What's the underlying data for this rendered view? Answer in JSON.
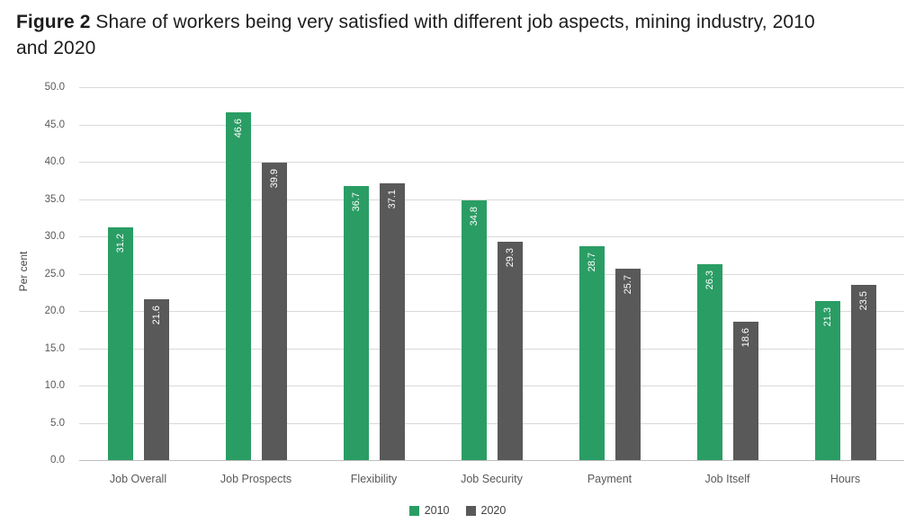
{
  "title": {
    "prefix": "Figure 2",
    "rest": " Share of workers being very satisfied with different job aspects, mining industry, 2010 and 2020"
  },
  "chart_data": {
    "type": "bar",
    "title": "Figure 2 Share of workers being very satisfied with different job aspects, mining industry, 2010 and 2020",
    "categories": [
      "Job Overall",
      "Job Prospects",
      "Flexibility",
      "Job Security",
      "Payment",
      "Job Itself",
      "Hours"
    ],
    "series": [
      {
        "name": "2010",
        "color": "#2a9d64",
        "values": [
          31.2,
          46.6,
          36.7,
          34.8,
          28.7,
          26.3,
          21.3
        ]
      },
      {
        "name": "2020",
        "color": "#595959",
        "values": [
          21.6,
          39.9,
          37.1,
          29.3,
          25.7,
          18.6,
          23.5
        ]
      }
    ],
    "xlabel": "",
    "ylabel": "Per cent",
    "ylim": [
      0,
      50
    ],
    "ytick_step": 5,
    "ytick_format_decimals": 1,
    "grid": true,
    "legend_position": "bottom",
    "value_labels": "inside-top-vertical",
    "colors": {
      "grid": "#d9d9d9",
      "axis": "#bfbfbf",
      "tick_text": "#595959",
      "value_label_text": "#ffffff"
    }
  }
}
